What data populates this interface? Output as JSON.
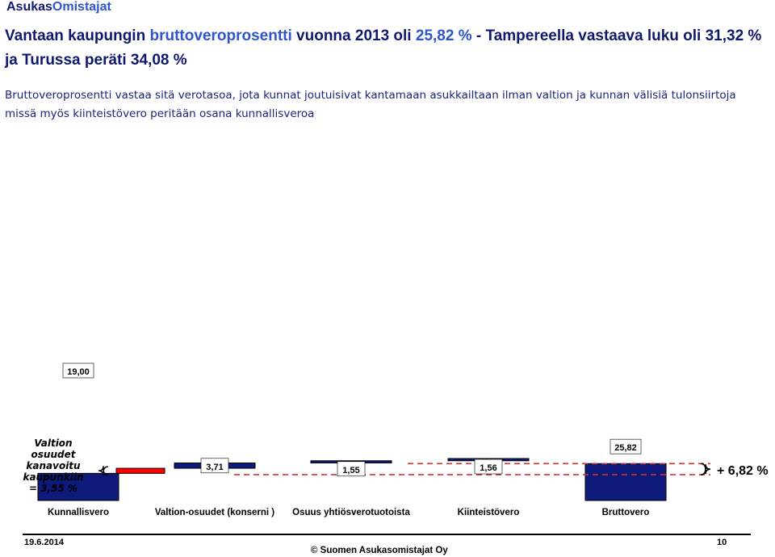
{
  "header": {
    "brand_part1": "Asukas",
    "brand_part2": "Omistajat",
    "title_seg1": "Vantaan kaupungin ",
    "title_seg2": "bruttoveroprosentti",
    "title_seg3": "  vuonna 2013 oli  ",
    "title_seg4": "25,82 %",
    "title_seg5": " - Tampereella vastaava luku oli 31,32 %  ja Turussa peräti 34,08 %",
    "subtitle": "Bruttoveroprosentti vastaa sitä verotasoa, jota kunnat joutuisivat kantamaan asukkailtaan ilman valtion ja kunnan välisiä tulonsiirtoja missä myös kiinteistövero peritään osana kunnallisveroa"
  },
  "chart_data": {
    "type": "bar",
    "subtype": "waterfall",
    "categories": [
      "Kunnallisvero",
      "Valtion-osuudet (konserni )",
      "Osuus yhtiösverotuotoista",
      "Kiinteistövero",
      "Bruttovero"
    ],
    "steps": [
      {
        "category": "Kunnallisvero",
        "value": 19.0,
        "label": "19,00",
        "kind": "base"
      },
      {
        "category": "Valtion-osuudet (konserni )",
        "value": 3.55,
        "label": "",
        "kind": "increment-red"
      },
      {
        "category": "Valtion-osuudet (konserni )",
        "value": 3.71,
        "label": "3,71",
        "kind": "increment"
      },
      {
        "category": "Osuus yhtiösverotuotoista",
        "value": 1.55,
        "label": "1,55",
        "kind": "increment"
      },
      {
        "category": "Kiinteistövero",
        "value": 1.56,
        "label": "1,56",
        "kind": "increment"
      },
      {
        "category": "Bruttovero",
        "value": 25.82,
        "label": "25,82",
        "kind": "total"
      }
    ],
    "annotations": {
      "left_brace_text": [
        "Valtion",
        "osuudet",
        "kanavoitu",
        "kaupunkiin",
        "= 3,55 %"
      ],
      "right_brace_text": "+ 6,82 %"
    },
    "colors": {
      "bar": "#0d1a7a",
      "red": "#ff0000",
      "dash": "#d33030"
    },
    "legend": "none",
    "grid": false
  },
  "footer": {
    "date": "19.6.2014",
    "copyright": "©  Suomen Asukasomistajat Oy",
    "page": "10"
  }
}
